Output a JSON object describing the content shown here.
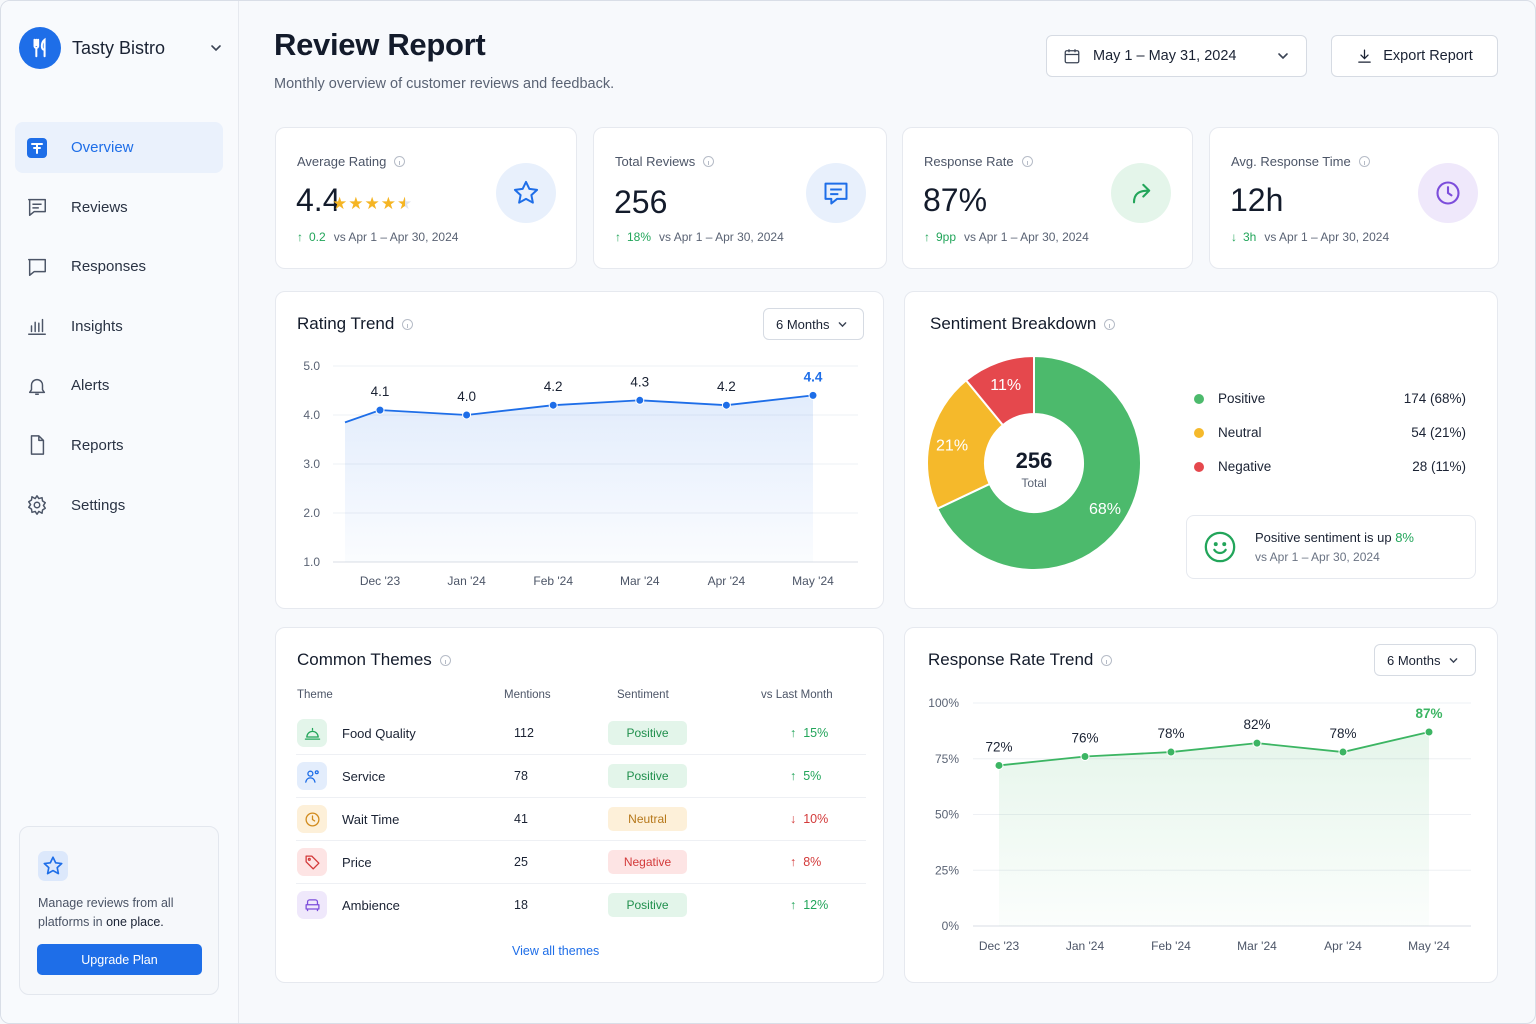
{
  "brand": {
    "name": "Tasty Bistro"
  },
  "nav": [
    {
      "label": "Overview",
      "icon": "overview-icon",
      "active": true
    },
    {
      "label": "Reviews",
      "icon": "reviews-icon"
    },
    {
      "label": "Responses",
      "icon": "responses-icon"
    },
    {
      "label": "Insights",
      "icon": "insights-icon"
    },
    {
      "label": "Alerts",
      "icon": "bell-icon"
    },
    {
      "label": "Reports",
      "icon": "file-icon"
    },
    {
      "label": "Settings",
      "icon": "gear-icon"
    }
  ],
  "promo": {
    "text_prefix": "Manage reviews from all platforms in ",
    "text_bold": "one place.",
    "button": "Upgrade Plan"
  },
  "header": {
    "title": "Review Report",
    "subtitle": "Monthly overview of customer reviews and feedback.",
    "date_range": "May 1 – May 31, 2024",
    "export": "Export Report"
  },
  "kpis": [
    {
      "label": "Average Rating",
      "value": "4.4",
      "rating": 4.4,
      "delta": "0.2",
      "direction": "up",
      "compare": "vs Apr 1 – Apr 30, 2024",
      "icon": "star-icon"
    },
    {
      "label": "Total Reviews",
      "value": "256",
      "delta": "18%",
      "direction": "up",
      "compare": "vs Apr 1 – Apr 30, 2024",
      "icon": "chat-icon"
    },
    {
      "label": "Response Rate",
      "value": "87%",
      "delta": "9pp",
      "direction": "up",
      "compare": "vs Apr 1 – Apr 30, 2024",
      "icon": "reply-icon"
    },
    {
      "label": "Avg. Response Time",
      "value": "12h",
      "delta": "3h",
      "direction": "down",
      "compare": "vs Apr 1 – Apr 30, 2024",
      "icon": "clock-icon"
    }
  ],
  "rating_trend": {
    "title": "Rating Trend",
    "period": "6 Months",
    "chart_data": {
      "type": "line",
      "x": [
        "Dec '23",
        "Jan '24",
        "Feb '24",
        "Mar '24",
        "Apr '24",
        "May '24"
      ],
      "values": [
        4.1,
        4.0,
        4.2,
        4.3,
        4.2,
        4.4
      ],
      "labels": [
        "4.1",
        "4.0",
        "4.2",
        "4.3",
        "4.2",
        "4.4"
      ],
      "y_ticks": [
        "1.0",
        "2.0",
        "3.0",
        "4.0",
        "5.0"
      ],
      "ylim": [
        1,
        5
      ],
      "start_value": 3.85,
      "color": "#1e6ee8",
      "grid": true
    }
  },
  "sentiment": {
    "title": "Sentiment Breakdown",
    "total": "256",
    "total_label": "Total",
    "chart_data": {
      "type": "pie",
      "slices": [
        {
          "name": "Positive",
          "value": 174,
          "percent": "68%",
          "display": "174 (68%)",
          "color": "#4cba6c"
        },
        {
          "name": "Neutral",
          "value": 54,
          "percent": "21%",
          "display": "54 (21%)",
          "color": "#f5b92b"
        },
        {
          "name": "Negative",
          "value": 28,
          "percent": "11%",
          "display": "28 (11%)",
          "color": "#e5484d"
        }
      ]
    },
    "note_text": "Positive sentiment is up ",
    "note_value": "8%",
    "note_compare": "vs Apr 1 – Apr 30, 2024"
  },
  "themes": {
    "title": "Common Themes",
    "columns": [
      "Theme",
      "Mentions",
      "Sentiment",
      "vs Last Month"
    ],
    "rows": [
      {
        "name": "Food Quality",
        "mentions": "112",
        "sentiment": "Positive",
        "kind": "pos",
        "delta": "15%",
        "direction": "up",
        "icon": "cloche-icon",
        "icon_color": "#22a55a",
        "icon_bg": "#e3f5ea"
      },
      {
        "name": "Service",
        "mentions": "78",
        "sentiment": "Positive",
        "kind": "pos",
        "delta": "5%",
        "direction": "up",
        "icon": "staff-icon",
        "icon_color": "#1e6ee8",
        "icon_bg": "#e3edfc"
      },
      {
        "name": "Wait Time",
        "mentions": "41",
        "sentiment": "Neutral",
        "kind": "neu",
        "delta": "10%",
        "direction": "down",
        "icon": "clock-icon",
        "icon_color": "#d18a1c",
        "icon_bg": "#fdf0d9"
      },
      {
        "name": "Price",
        "mentions": "25",
        "sentiment": "Negative",
        "kind": "neg",
        "delta": "8%",
        "direction": "up",
        "icon": "tag-icon",
        "icon_color": "#d33a3a",
        "icon_bg": "#fde4e4"
      },
      {
        "name": "Ambience",
        "mentions": "18",
        "sentiment": "Positive",
        "kind": "pos",
        "delta": "12%",
        "direction": "up",
        "icon": "sofa-icon",
        "icon_color": "#7c4ddb",
        "icon_bg": "#efe8fb"
      }
    ],
    "view_all": "View all themes"
  },
  "response_trend": {
    "title": "Response Rate Trend",
    "period": "6 Months",
    "chart_data": {
      "type": "line",
      "x": [
        "Dec '23",
        "Jan '24",
        "Feb '24",
        "Mar '24",
        "Apr '24",
        "May '24"
      ],
      "values": [
        72,
        76,
        78,
        82,
        78,
        87
      ],
      "labels": [
        "72%",
        "76%",
        "78%",
        "82%",
        "78%",
        "87%"
      ],
      "y_ticks": [
        "0%",
        "25%",
        "50%",
        "75%",
        "100%"
      ],
      "ylim": [
        0,
        100
      ],
      "color": "#3cb563",
      "grid": true
    }
  }
}
